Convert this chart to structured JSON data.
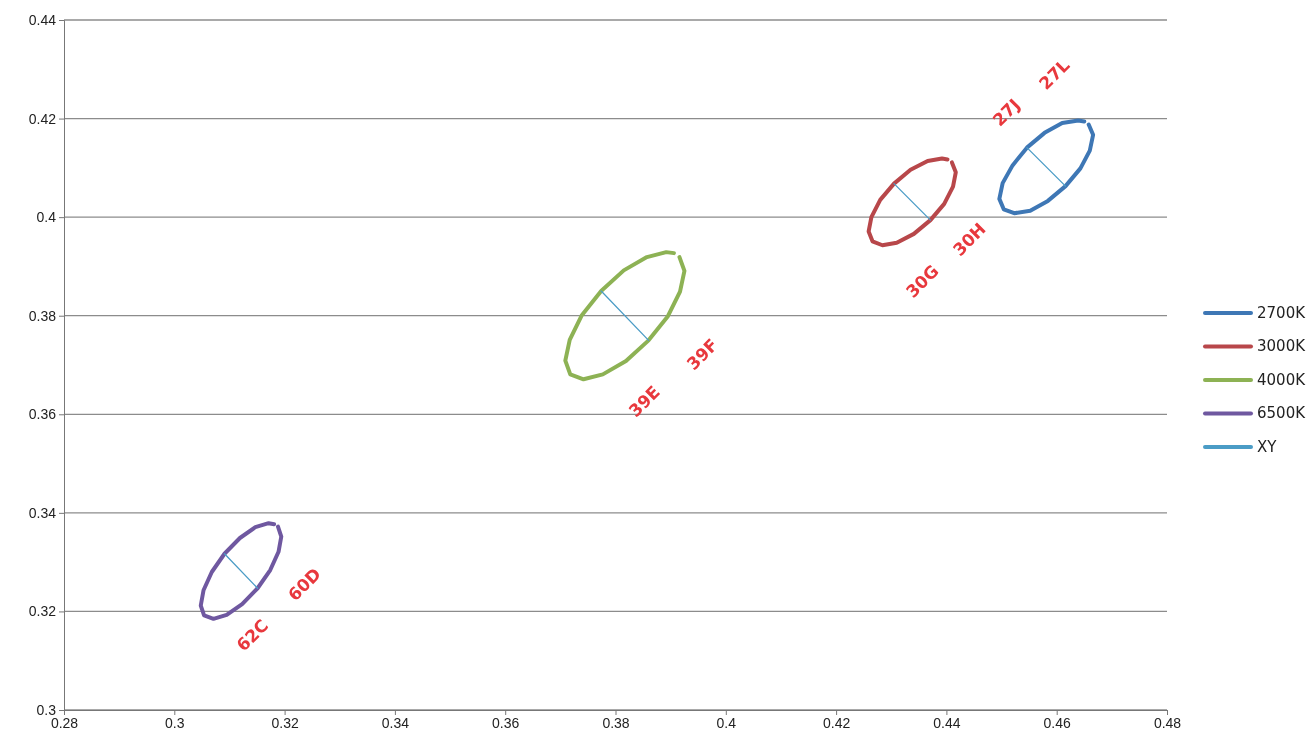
{
  "chart_data": {
    "type": "line",
    "xlim": [
      0.28,
      0.48
    ],
    "ylim": [
      0.3,
      0.44
    ],
    "xticks": [
      0.28,
      0.3,
      0.32,
      0.34,
      0.36,
      0.38,
      0.4,
      0.42,
      0.44,
      0.46,
      0.48
    ],
    "yticks": [
      0.3,
      0.32,
      0.34,
      0.36,
      0.38,
      0.4,
      0.42,
      0.44
    ],
    "grid": "y",
    "legend": "right",
    "marker": "none",
    "line_style": "solid",
    "series": [
      {
        "name": "2700K",
        "color": "#3e77b5",
        "x": [
          0.4658,
          0.4666,
          0.466,
          0.4643,
          0.4616,
          0.4584,
          0.4552,
          0.4523,
          0.4504,
          0.4496,
          0.4502,
          0.452,
          0.4546,
          0.4578,
          0.461,
          0.4639,
          0.465
        ],
        "values": [
          0.4188,
          0.4167,
          0.4135,
          0.4099,
          0.4063,
          0.4033,
          0.4013,
          0.4008,
          0.4016,
          0.4037,
          0.4069,
          0.4105,
          0.4141,
          0.4171,
          0.4191,
          0.4196,
          0.4194
        ]
      },
      {
        "name": "3000K",
        "color": "#b8474a",
        "x": [
          0.441,
          0.4417,
          0.4412,
          0.4396,
          0.4371,
          0.4341,
          0.431,
          0.4284,
          0.4266,
          0.4259,
          0.4264,
          0.428,
          0.4305,
          0.4335,
          0.4366,
          0.4392,
          0.4402
        ],
        "values": [
          0.4111,
          0.4091,
          0.4062,
          0.4027,
          0.3994,
          0.3966,
          0.3948,
          0.3943,
          0.3951,
          0.3971,
          0.4,
          0.4035,
          0.4068,
          0.4096,
          0.4114,
          0.4119,
          0.4117
        ]
      },
      {
        "name": "4000K",
        "color": "#8db254",
        "x": [
          0.3916,
          0.3925,
          0.3917,
          0.3895,
          0.386,
          0.3819,
          0.3777,
          0.3742,
          0.3718,
          0.3709,
          0.3717,
          0.3739,
          0.3774,
          0.3815,
          0.3857,
          0.3892,
          0.3906
        ],
        "values": [
          0.3919,
          0.3891,
          0.3849,
          0.3799,
          0.375,
          0.3708,
          0.3681,
          0.3671,
          0.3681,
          0.3709,
          0.3751,
          0.3801,
          0.385,
          0.3892,
          0.3919,
          0.3929,
          0.3927
        ]
      },
      {
        "name": "6500K",
        "color": "#6f58a0",
        "x": [
          0.3188,
          0.3194,
          0.3189,
          0.3174,
          0.3151,
          0.3123,
          0.3095,
          0.3071,
          0.3054,
          0.3048,
          0.3053,
          0.3068,
          0.3091,
          0.3119,
          0.3147,
          0.3171,
          0.3181
        ],
        "values": [
          0.3372,
          0.3352,
          0.3321,
          0.3284,
          0.3247,
          0.3215,
          0.3193,
          0.3185,
          0.3192,
          0.3212,
          0.3243,
          0.328,
          0.3317,
          0.3349,
          0.3371,
          0.3379,
          0.3377
        ]
      },
      {
        "name": "XY",
        "color": "#4b9cc6",
        "x": [
          0.4546,
          0.4616,
          null,
          0.4305,
          0.4371,
          null,
          0.3774,
          0.386,
          null,
          0.3091,
          0.3151
        ],
        "values": [
          0.4141,
          0.4063,
          null,
          0.4068,
          0.3994,
          null,
          0.385,
          0.375,
          null,
          0.3317,
          0.3247
        ]
      }
    ],
    "annotations": [
      "27J",
      "27L",
      "30G",
      "30H",
      "39E",
      "39F",
      "62C",
      "60D"
    ]
  }
}
